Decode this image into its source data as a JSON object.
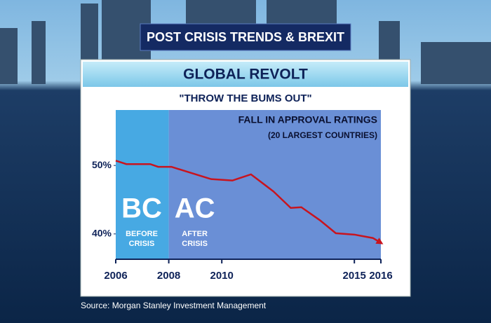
{
  "header": "POST CRISIS TRENDS & BREXIT",
  "source": "Source: Morgan Stanley Investment Management",
  "chart_data": {
    "type": "line",
    "title": "GLOBAL REVOLT",
    "subtitle": "\"THROW THE BUMS OUT\"",
    "annotation": [
      "FALL IN APPROVAL RATINGS",
      "(20 LARGEST COUNTRIES)"
    ],
    "x": [
      2006,
      2006.4,
      2007.3,
      2007.6,
      2008.1,
      2009.6,
      2010.4,
      2011.1,
      2011.95,
      2012.6,
      2013.0,
      2013.7,
      2014.3,
      2015.0,
      2015.7,
      2016
    ],
    "values": [
      50.7,
      50.2,
      50.2,
      49.8,
      49.8,
      48.0,
      47.8,
      48.7,
      46.2,
      43.8,
      43.9,
      42.0,
      40.1,
      39.9,
      39.4,
      38.7
    ],
    "color": "#c8141e",
    "xlim": [
      2006,
      2016
    ],
    "xticks": [
      2006,
      2008,
      2010,
      2015,
      2016
    ],
    "ylim": [
      36.3,
      58.1
    ],
    "yticks": [
      {
        "value": 50,
        "label": "50%"
      },
      {
        "value": 40,
        "label": "40%"
      }
    ],
    "regions": [
      {
        "label": "BC",
        "sublabel": [
          "BEFORE",
          "CRISIS"
        ],
        "x_start": 2006,
        "x_end": 2008,
        "color": "#47a9e3"
      },
      {
        "label": "AC",
        "sublabel": [
          "AFTER",
          "CRISIS"
        ],
        "x_start": 2008,
        "x_end": 2016,
        "color": "#6a8fd6"
      }
    ]
  }
}
